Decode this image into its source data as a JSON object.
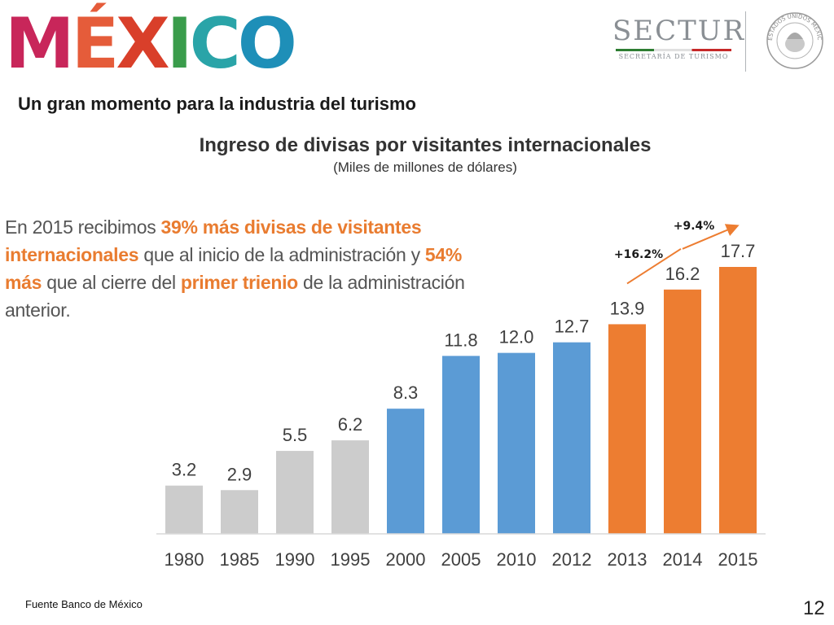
{
  "header": {
    "logo_letters": [
      "M",
      "É",
      "X",
      "I",
      "C",
      "O"
    ],
    "logo_colors": [
      "#c8265a",
      "#e55c3a",
      "#d93f2a",
      "#3a9c4b",
      "#2aa4a8",
      "#1e8fb8"
    ],
    "sectur_name": "SECTUR",
    "sectur_subtitle": "SECRETARÍA DE TURISMO",
    "seal_text": "ESTADOS UNIDOS MEXICANOS"
  },
  "slide": {
    "subtitle": "Un gran momento para la industria del turismo",
    "page_number": "12",
    "source": "Fuente Banco de México"
  },
  "callout": {
    "part1": "En 2015 recibimos ",
    "hl1": "39% más divisas de visitantes internacionales",
    "part2": " que al inicio de la administración y ",
    "hl2": "54% más",
    "part3": " que al cierre del ",
    "hl3": "primer trienio",
    "part4": " de la administración anterior."
  },
  "chart_data": {
    "type": "bar",
    "title": "Ingreso de divisas por visitantes internacionales",
    "subtitle": "(Miles de millones de dólares)",
    "categories": [
      "1980",
      "1985",
      "1990",
      "1995",
      "2000",
      "2005",
      "2010",
      "2012",
      "2013",
      "2014",
      "2015"
    ],
    "values": [
      3.2,
      2.9,
      5.5,
      6.2,
      8.3,
      11.8,
      12.0,
      12.7,
      13.9,
      16.2,
      17.7
    ],
    "value_labels": [
      "3.2",
      "2.9",
      "5.5",
      "6.2",
      "8.3",
      "11.8",
      "12.0",
      "12.7",
      "13.9",
      "16.2",
      "17.7"
    ],
    "bar_colors": [
      "#cccccc",
      "#cccccc",
      "#cccccc",
      "#cccccc",
      "#5b9bd5",
      "#5b9bd5",
      "#5b9bd5",
      "#5b9bd5",
      "#ed7d31",
      "#ed7d31",
      "#ed7d31"
    ],
    "ylim": [
      0,
      17.7
    ],
    "grid": false,
    "annotations": [
      {
        "text": "+16.2%",
        "from": "2013",
        "to": "2014"
      },
      {
        "text": "+9.4%",
        "from": "2014",
        "to": "2015"
      }
    ],
    "annotation_color": "#ed7d31"
  }
}
